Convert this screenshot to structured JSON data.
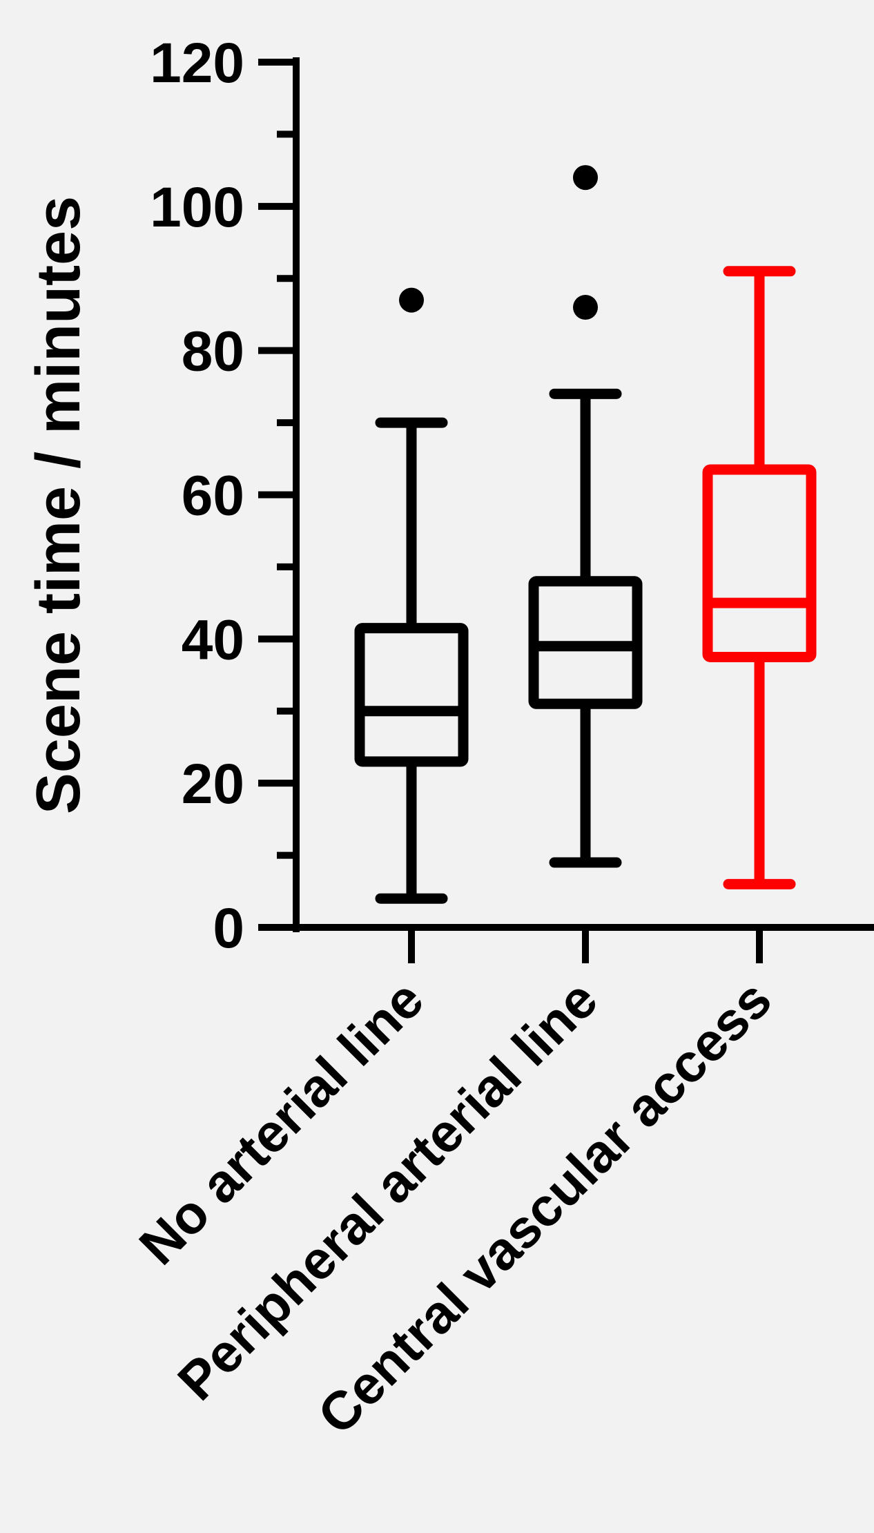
{
  "chart_data": {
    "type": "box",
    "ylabel": "Scene time / minutes",
    "xlabel": "",
    "ylim": [
      0,
      120
    ],
    "y_major_ticks": [
      0,
      20,
      40,
      60,
      80,
      100,
      120
    ],
    "y_minor_ticks": [
      10,
      30,
      50,
      70,
      90,
      110
    ],
    "grid": false,
    "categories": [
      "No arterial line",
      "Peripheral arterial line",
      "Central vascular access"
    ],
    "series": [
      {
        "category": "No arterial line",
        "min": 4,
        "q1": 23,
        "median": 30,
        "q3": 41.5,
        "max": 70,
        "outliers": [
          87
        ],
        "color": "#000000"
      },
      {
        "category": "Peripheral arterial line",
        "min": 9,
        "q1": 31,
        "median": 39,
        "q3": 48,
        "max": 74,
        "outliers": [
          86,
          104
        ],
        "color": "#000000"
      },
      {
        "category": "Central vascular access",
        "min": 6,
        "q1": 37.5,
        "median": 45,
        "q3": 63.5,
        "max": 91,
        "outliers": [],
        "color": "#ff0000"
      }
    ]
  }
}
